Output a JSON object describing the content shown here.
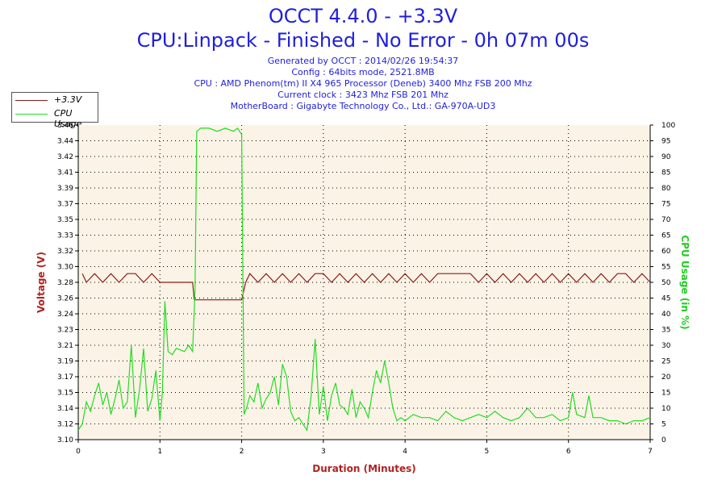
{
  "header": {
    "title": "OCCT 4.4.0 - +3.3V",
    "subtitle": "CPU:Linpack - Finished - No Error - 0h 07m 00s",
    "info_lines": [
      "Generated by OCCT : 2014/02/26 19:54:37",
      "Config : 64bits mode, 2521.8MB",
      "CPU : AMD Phenom(tm) II X4 965 Processor (Deneb) 3400 Mhz FSB 200 Mhz",
      "Current clock : 3423 Mhz FSB 201 Mhz",
      "MotherBoard : Gigabyte Technology Co., Ltd.: GA-970A-UD3"
    ]
  },
  "legend": {
    "items": [
      {
        "label": "+3.3V",
        "color": "#8b1a1a"
      },
      {
        "label": "CPU Usage",
        "color": "#22dd22"
      }
    ]
  },
  "chart_data": {
    "type": "line",
    "title": "OCCT 4.4.0 - +3.3V",
    "xlabel": "Duration (Minutes)",
    "ylabel_left": "Voltage (V)",
    "ylabel_right": "CPU Usage (in %)",
    "xlim": [
      0,
      7
    ],
    "x_ticks": [
      "0",
      "1",
      "2",
      "3",
      "4",
      "5",
      "6",
      "7"
    ],
    "ylim_left": [
      3.1,
      3.46
    ],
    "y_left_ticks": [
      "3.10",
      "3.12",
      "3.14",
      "3.15",
      "3.17",
      "3.19",
      "3.21",
      "3.23",
      "3.24",
      "3.26",
      "3.28",
      "3.30",
      "3.32",
      "3.33",
      "3.35",
      "3.37",
      "3.39",
      "3.41",
      "3.42",
      "3.44",
      "3.46"
    ],
    "ylim_right": [
      0,
      100
    ],
    "y_right_ticks": [
      "0",
      "5",
      "10",
      "15",
      "20",
      "25",
      "30",
      "35",
      "40",
      "45",
      "50",
      "55",
      "60",
      "65",
      "70",
      "75",
      "80",
      "85",
      "90",
      "95",
      "100"
    ],
    "grid": true,
    "colors": {
      "voltage": "#8b1a1a",
      "cpu": "#22dd22",
      "plot_bg": "#fbf3e6",
      "axis_label": "#b22222",
      "right_label": "#22cc22"
    },
    "series": [
      {
        "name": "+3.3V",
        "axis": "left",
        "x": [
          0.05,
          0.1,
          0.2,
          0.3,
          0.4,
          0.5,
          0.6,
          0.7,
          0.8,
          0.9,
          1.0,
          1.05,
          1.4,
          1.42,
          1.5,
          1.7,
          1.9,
          2.0,
          2.05,
          2.1,
          2.2,
          2.3,
          2.4,
          2.5,
          2.6,
          2.7,
          2.8,
          2.9,
          3.0,
          3.1,
          3.2,
          3.3,
          3.4,
          3.5,
          3.6,
          3.7,
          3.8,
          3.9,
          4.0,
          4.1,
          4.2,
          4.3,
          4.4,
          4.5,
          4.6,
          4.7,
          4.8,
          4.9,
          5.0,
          5.1,
          5.2,
          5.3,
          5.4,
          5.5,
          5.6,
          5.7,
          5.8,
          5.9,
          6.0,
          6.1,
          6.2,
          6.3,
          6.4,
          6.5,
          6.6,
          6.7,
          6.8,
          6.9,
          7.0
        ],
        "values": [
          3.29,
          3.28,
          3.29,
          3.28,
          3.29,
          3.28,
          3.29,
          3.29,
          3.28,
          3.29,
          3.28,
          3.28,
          3.28,
          3.26,
          3.26,
          3.26,
          3.26,
          3.26,
          3.28,
          3.29,
          3.28,
          3.29,
          3.28,
          3.29,
          3.28,
          3.29,
          3.28,
          3.29,
          3.29,
          3.28,
          3.29,
          3.28,
          3.29,
          3.28,
          3.29,
          3.28,
          3.29,
          3.28,
          3.29,
          3.28,
          3.29,
          3.28,
          3.29,
          3.29,
          3.29,
          3.29,
          3.29,
          3.28,
          3.29,
          3.28,
          3.29,
          3.28,
          3.29,
          3.28,
          3.29,
          3.28,
          3.29,
          3.28,
          3.29,
          3.28,
          3.29,
          3.28,
          3.29,
          3.28,
          3.29,
          3.29,
          3.28,
          3.29,
          3.28
        ]
      },
      {
        "name": "CPU Usage",
        "axis": "right",
        "x": [
          0.0,
          0.05,
          0.1,
          0.15,
          0.2,
          0.25,
          0.3,
          0.35,
          0.4,
          0.45,
          0.5,
          0.55,
          0.6,
          0.65,
          0.7,
          0.75,
          0.8,
          0.85,
          0.9,
          0.95,
          1.0,
          1.03,
          1.06,
          1.1,
          1.15,
          1.2,
          1.3,
          1.35,
          1.4,
          1.43,
          1.45,
          1.5,
          1.6,
          1.7,
          1.8,
          1.9,
          1.95,
          2.0,
          2.03,
          2.06,
          2.1,
          2.15,
          2.2,
          2.25,
          2.3,
          2.35,
          2.4,
          2.45,
          2.5,
          2.55,
          2.6,
          2.65,
          2.7,
          2.75,
          2.8,
          2.85,
          2.9,
          2.95,
          3.0,
          3.05,
          3.1,
          3.15,
          3.2,
          3.25,
          3.3,
          3.35,
          3.4,
          3.45,
          3.5,
          3.55,
          3.6,
          3.65,
          3.7,
          3.75,
          3.8,
          3.85,
          3.9,
          3.95,
          4.0,
          4.1,
          4.2,
          4.3,
          4.4,
          4.5,
          4.6,
          4.7,
          4.8,
          4.9,
          5.0,
          5.1,
          5.2,
          5.3,
          5.4,
          5.5,
          5.6,
          5.7,
          5.8,
          5.9,
          6.0,
          6.05,
          6.1,
          6.2,
          6.25,
          6.3,
          6.4,
          6.5,
          6.6,
          6.7,
          6.8,
          6.9,
          7.0
        ],
        "values": [
          3,
          5,
          12,
          9,
          14,
          18,
          11,
          15,
          8,
          13,
          19,
          10,
          12,
          30,
          7,
          16,
          29,
          9,
          13,
          22,
          6,
          15,
          44,
          28,
          27,
          29,
          28,
          30,
          28,
          48,
          98,
          99,
          99,
          98,
          99,
          98,
          99,
          97,
          8,
          10,
          14,
          12,
          18,
          10,
          13,
          15,
          20,
          11,
          24,
          20,
          9,
          6,
          7,
          5,
          3,
          14,
          32,
          8,
          17,
          6,
          14,
          18,
          11,
          10,
          8,
          16,
          7,
          12,
          10,
          7,
          15,
          22,
          18,
          25,
          18,
          10,
          6,
          7,
          6,
          8,
          7,
          7,
          6,
          9,
          7,
          6,
          7,
          8,
          7,
          9,
          7,
          6,
          7,
          10,
          7,
          7,
          8,
          6,
          7,
          15,
          8,
          7,
          14,
          7,
          7,
          6,
          6,
          5,
          6,
          6,
          7
        ]
      }
    ]
  }
}
